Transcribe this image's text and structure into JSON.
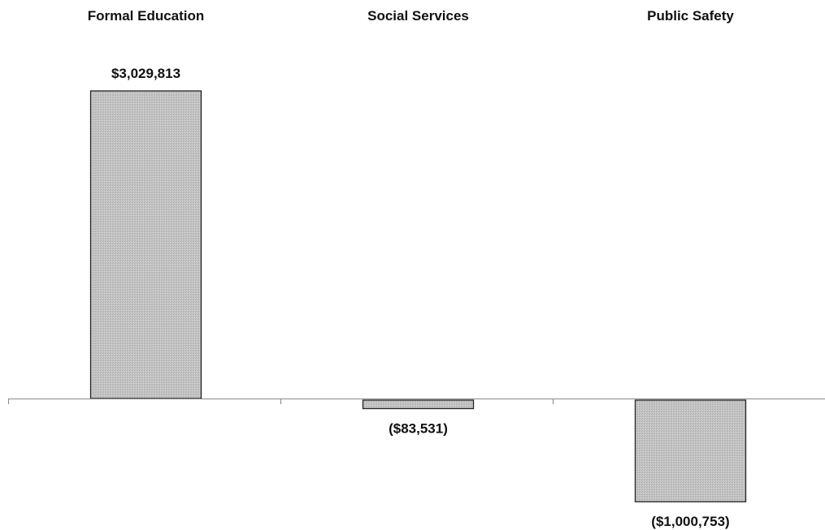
{
  "chart_data": {
    "type": "bar",
    "categories": [
      "Formal Education",
      "Social Services",
      "Public Safety"
    ],
    "values": [
      3029813,
      -83531,
      -1000753
    ],
    "value_labels": [
      "$3,029,813",
      "($83,531)",
      "($1,000,753)"
    ],
    "category_label_position": "top",
    "legend": "none",
    "grid": false,
    "bar_color": "#bdbdbd",
    "bar_border_color": "#222222",
    "axis_color": "#888888"
  }
}
